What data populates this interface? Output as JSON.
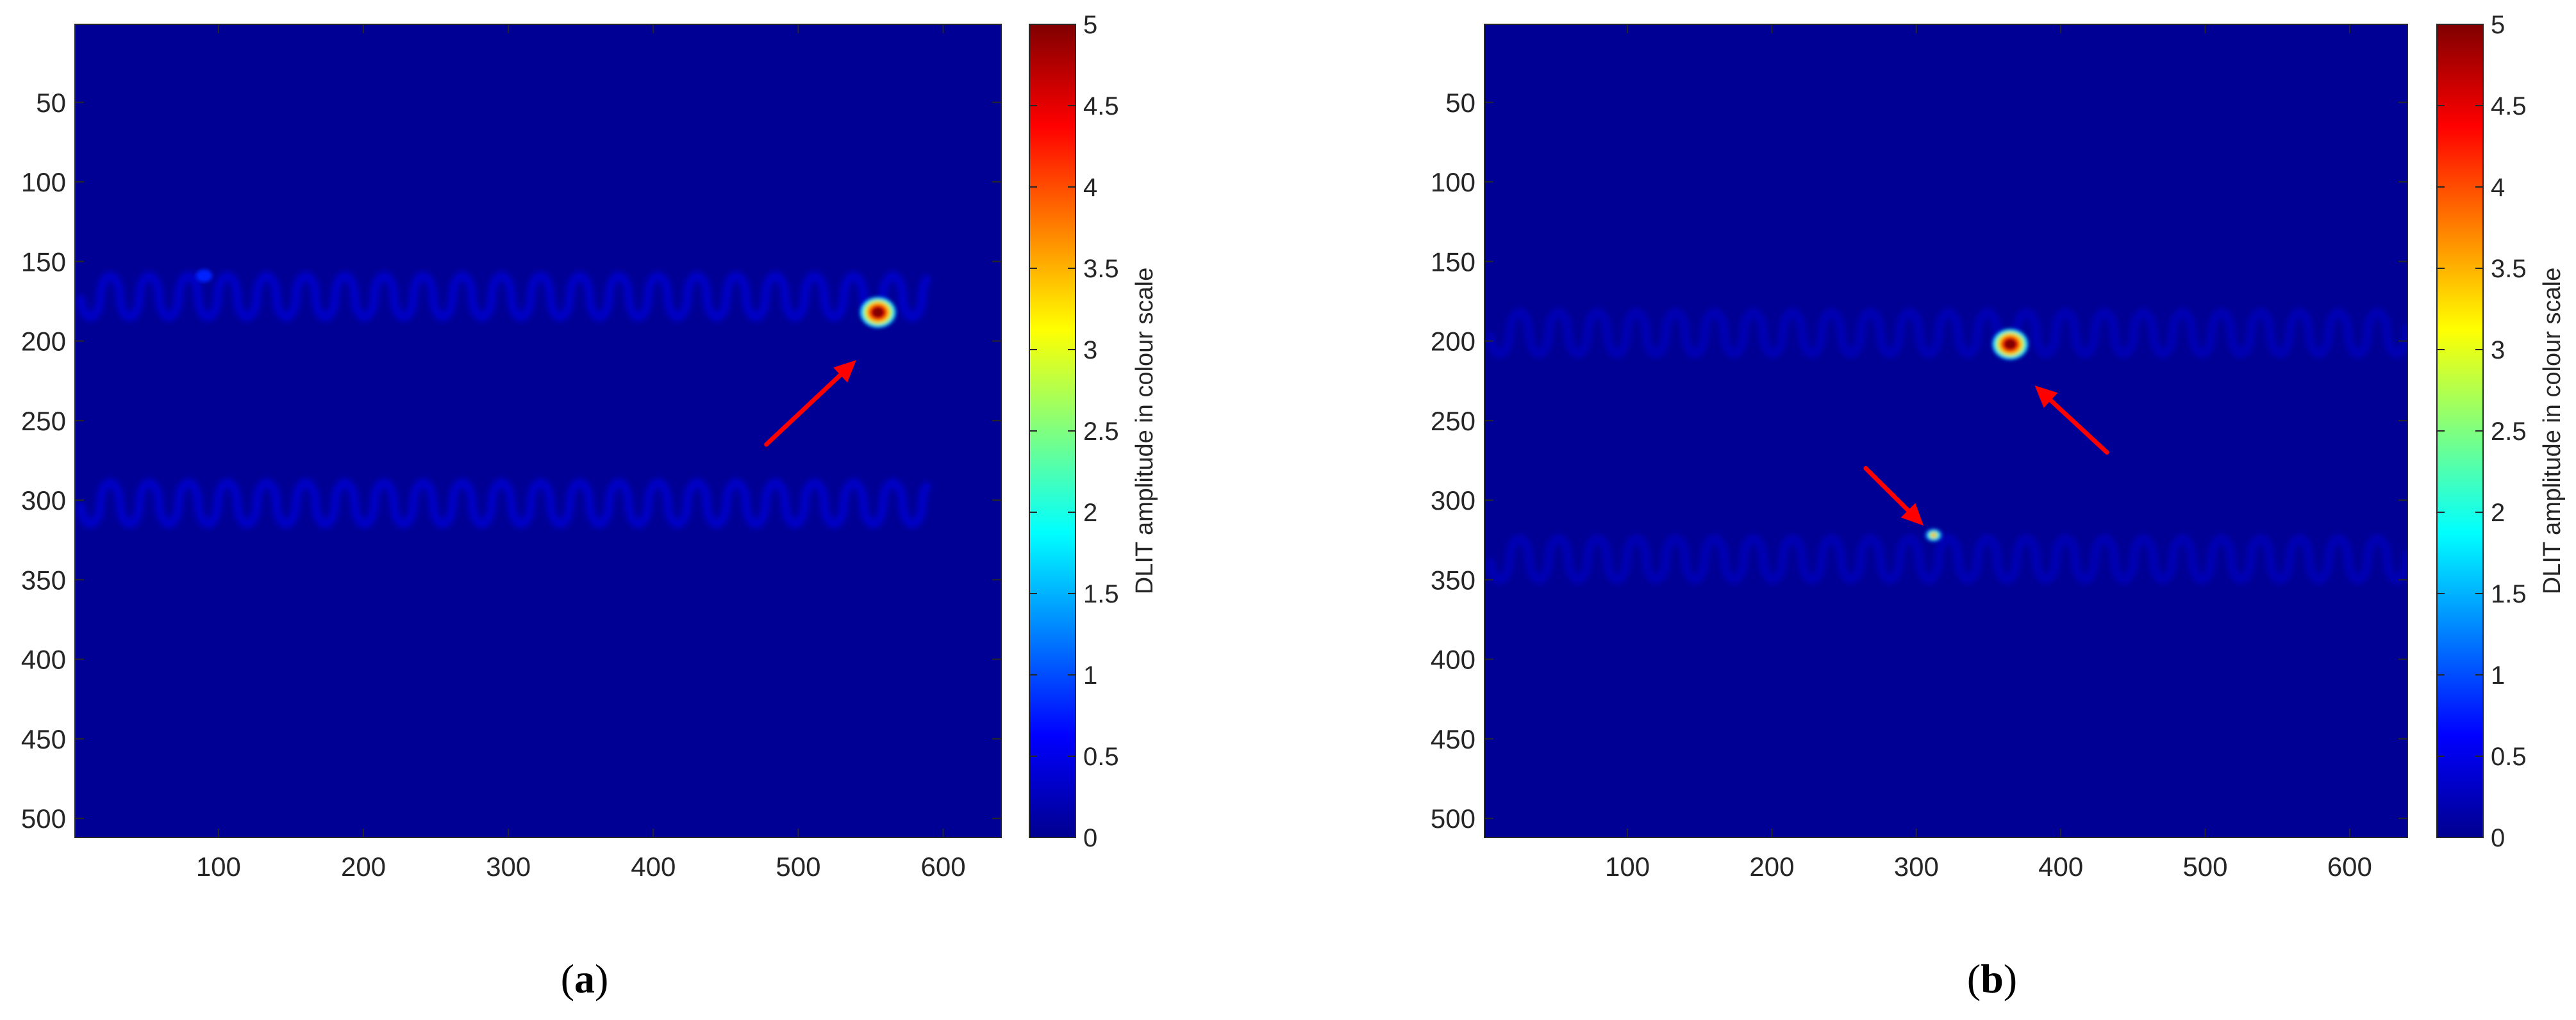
{
  "chart_data": [
    {
      "type": "heatmap",
      "panel_label": "a",
      "xlim": [
        1,
        640
      ],
      "ylim": [
        1,
        512
      ],
      "x_ticks": [
        100,
        200,
        300,
        400,
        500,
        600
      ],
      "y_ticks": [
        50,
        100,
        150,
        200,
        250,
        300,
        350,
        400,
        450,
        500
      ],
      "y_reversed": true,
      "colormap": "jet",
      "colorbar": {
        "label": "DLIT amplitude in colour scale",
        "range": [
          0,
          5
        ],
        "ticks": [
          0,
          0.5,
          1,
          1.5,
          2,
          2.5,
          3,
          3.5,
          4,
          4.5,
          5
        ]
      },
      "background_value": 0.1,
      "serpentine_traces": [
        {
          "x_start": 5,
          "x_end": 590,
          "y_center": 172,
          "amplitude": 13,
          "period": 27,
          "value": 0.4
        },
        {
          "x_start": 5,
          "x_end": 590,
          "y_center": 302,
          "amplitude": 13,
          "period": 27,
          "value": 0.4
        }
      ],
      "hot_spots": [
        {
          "x": 555,
          "y": 182,
          "peak": 5,
          "size": "large"
        },
        {
          "x": 90,
          "y": 159,
          "peak": 0.8,
          "size": "small"
        }
      ],
      "arrows": [
        {
          "from": [
            478,
            265
          ],
          "to": [
            540,
            212
          ],
          "color": "#ff0000"
        }
      ]
    },
    {
      "type": "heatmap",
      "panel_label": "b",
      "xlim": [
        1,
        640
      ],
      "ylim": [
        1,
        512
      ],
      "x_ticks": [
        100,
        200,
        300,
        400,
        500,
        600
      ],
      "y_ticks": [
        50,
        100,
        150,
        200,
        250,
        300,
        350,
        400,
        450,
        500
      ],
      "y_reversed": true,
      "colormap": "jet",
      "colorbar": {
        "label": "DLIT amplitude in colour scale",
        "range": [
          0,
          5
        ],
        "ticks": [
          0,
          0.5,
          1,
          1.5,
          2,
          2.5,
          3,
          3.5,
          4,
          4.5,
          5
        ]
      },
      "background_value": 0.1,
      "serpentine_traces": [
        {
          "x_start": 5,
          "x_end": 640,
          "y_center": 195,
          "amplitude": 13,
          "period": 27,
          "value": 0.3
        },
        {
          "x_start": 5,
          "x_end": 640,
          "y_center": 337,
          "amplitude": 13,
          "period": 27,
          "value": 0.3
        }
      ],
      "hot_spots": [
        {
          "x": 365,
          "y": 202,
          "peak": 5,
          "size": "large"
        },
        {
          "x": 312,
          "y": 322,
          "peak": 3.5,
          "size": "small"
        }
      ],
      "arrows": [
        {
          "from": [
            432,
            270
          ],
          "to": [
            382,
            228
          ],
          "color": "#ff0000"
        },
        {
          "from": [
            265,
            280
          ],
          "to": [
            305,
            316
          ],
          "color": "#ff0000"
        }
      ]
    }
  ]
}
